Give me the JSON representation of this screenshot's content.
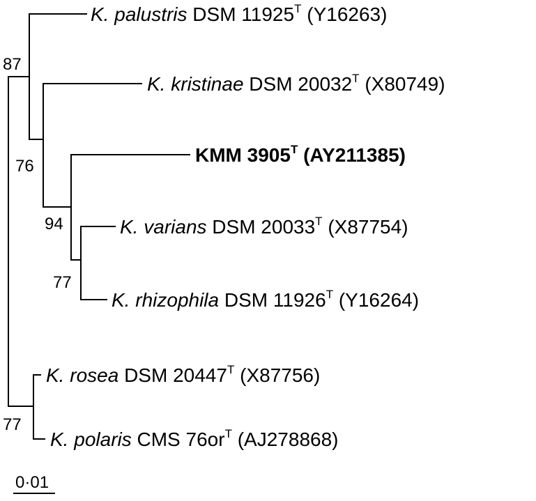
{
  "taxa": [
    {
      "genus": "K.",
      "species": "palustris",
      "strain": "DSM 11925",
      "type_mark": "T",
      "accession": "(Y16263)"
    },
    {
      "genus": "K.",
      "species": "kristinae",
      "strain": "DSM 20032",
      "type_mark": "T",
      "accession": "(X80749)"
    },
    {
      "name": "KMM 3905",
      "type_mark": "T",
      "accession": "(AY211385)",
      "bold": true
    },
    {
      "genus": "K.",
      "species": "varians",
      "strain": "DSM 20033",
      "type_mark": "T",
      "accession": "(X87754)"
    },
    {
      "genus": "K.",
      "species": "rhizophila",
      "strain": "DSM 11926",
      "type_mark": "T",
      "accession": "(Y16264)"
    },
    {
      "genus": "K.",
      "species": "rosea",
      "strain": "DSM 20447",
      "type_mark": "T",
      "accession": "(X87756)"
    },
    {
      "genus": "K.",
      "species": "polaris",
      "strain": "CMS 76or",
      "type_mark": "T",
      "accession": "(AJ278868)"
    }
  ],
  "bootstrap": {
    "palustris_clade": "87",
    "kristinae_clade": "76",
    "kmm_clade": "94",
    "varians_rhizophila": "77",
    "rosea_polaris": "77"
  },
  "scale_bar": {
    "label": "0·01"
  }
}
